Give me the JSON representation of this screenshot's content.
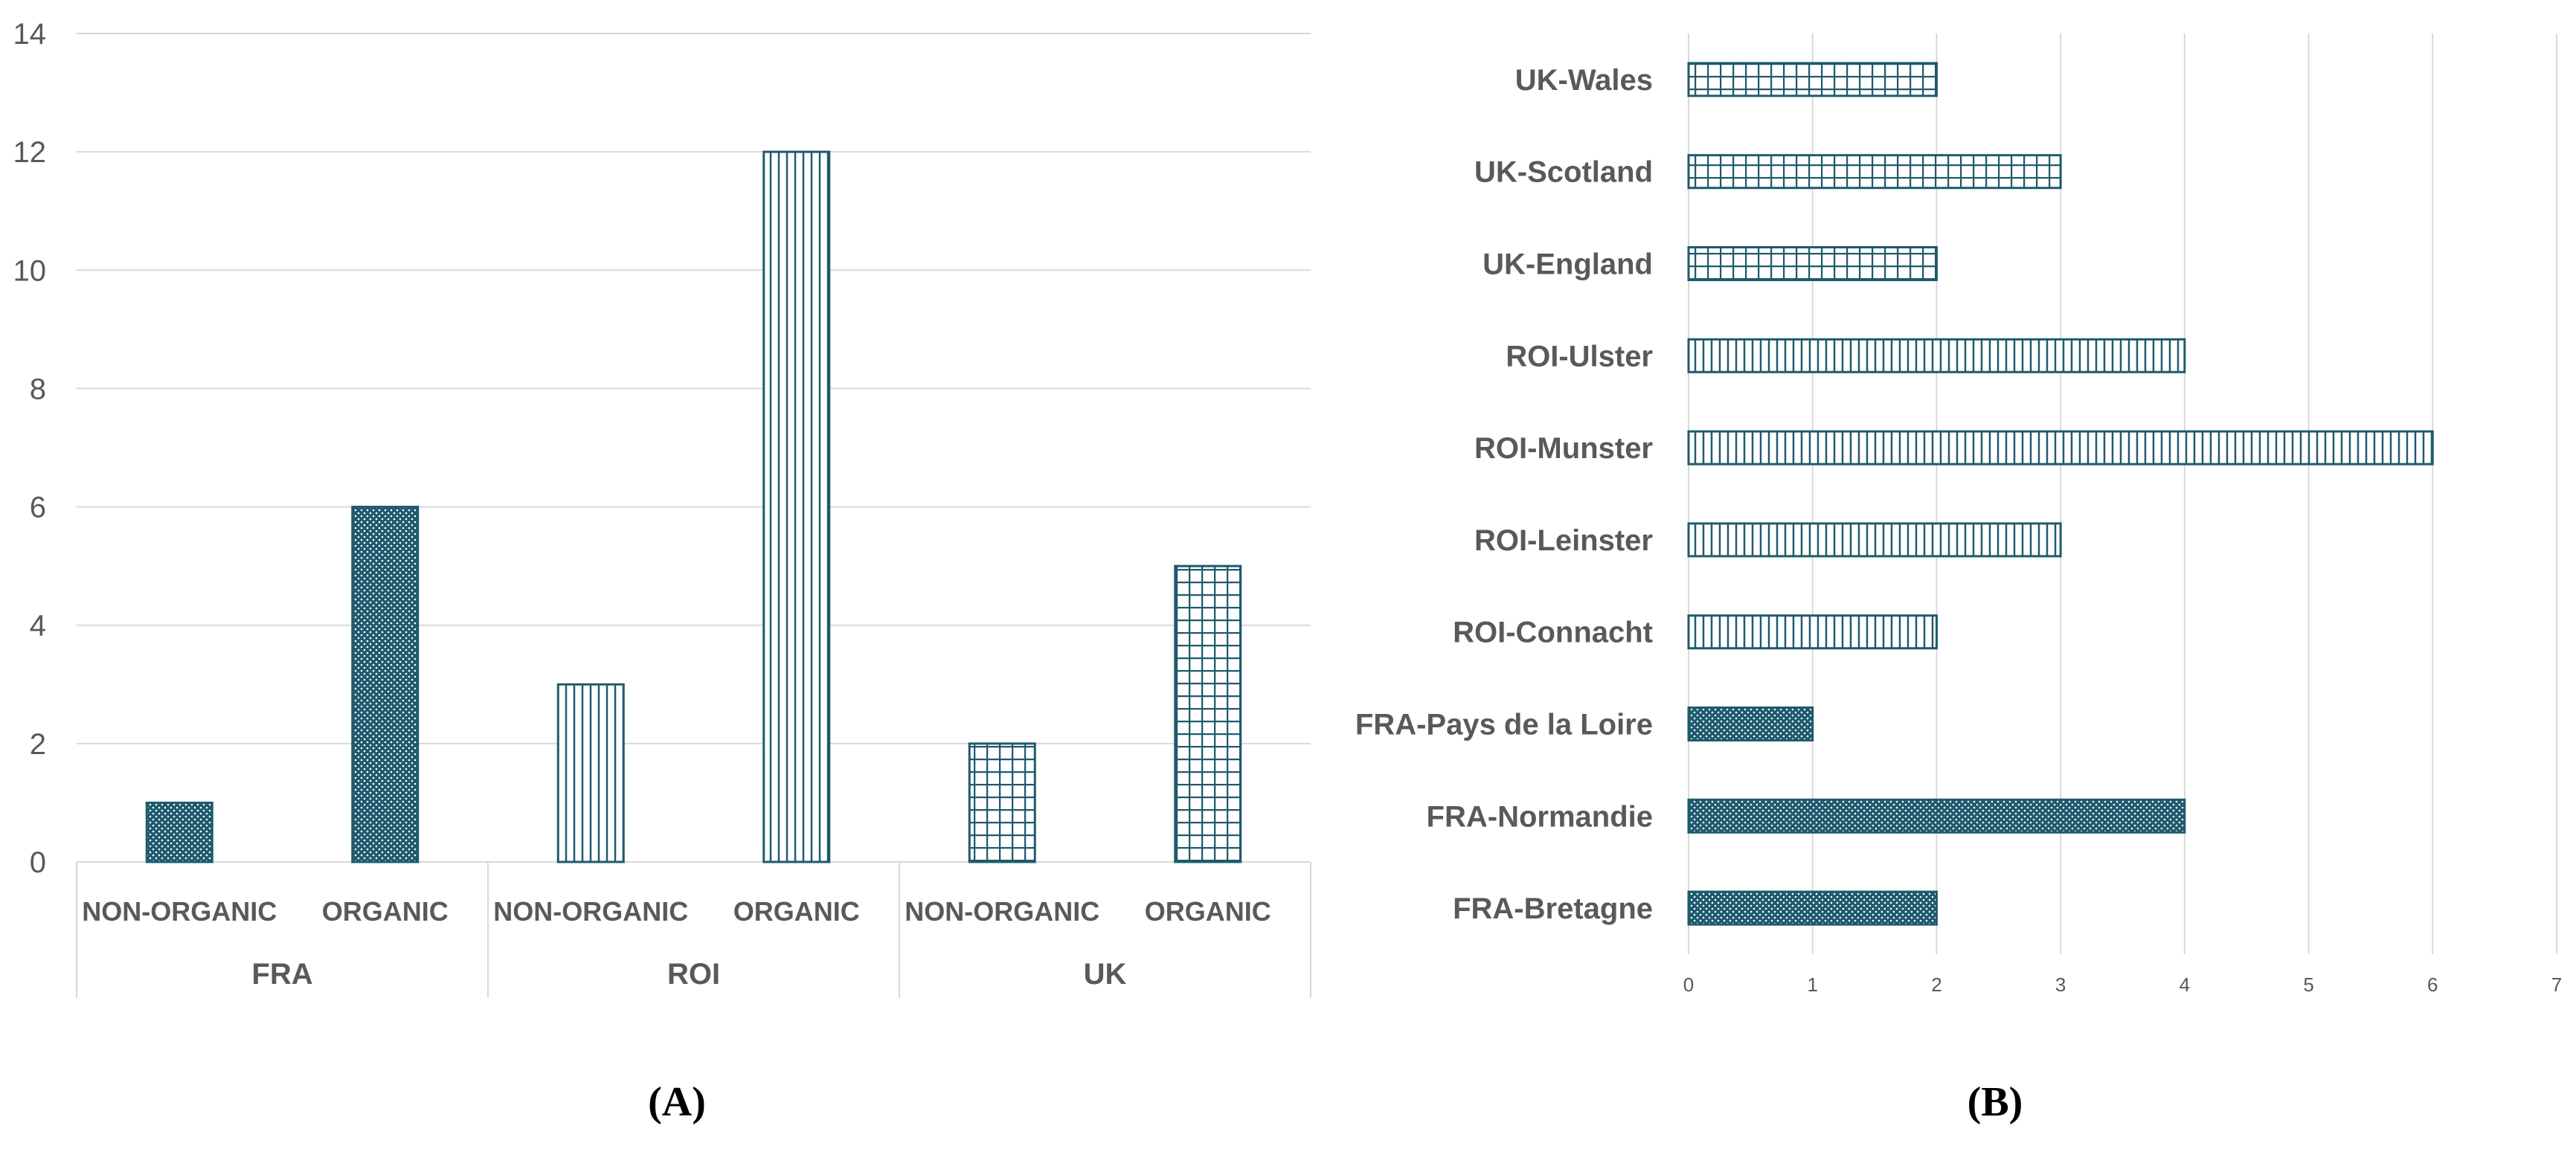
{
  "colors": {
    "bar": "#1f5a6e",
    "grid": "#d9d9d9",
    "text": "#595959"
  },
  "panel_labels": [
    "(A)",
    "(B)"
  ],
  "chart_data": [
    {
      "type": "bar",
      "panel": "(A)",
      "title": "",
      "xlabel": "",
      "ylabel": "",
      "ylim": [
        0,
        14
      ],
      "yticks": [
        0,
        2,
        4,
        6,
        8,
        10,
        12,
        14
      ],
      "grid": true,
      "groups": [
        "FRA",
        "ROI",
        "UK"
      ],
      "categories": [
        "NON-ORGANIC",
        "ORGANIC",
        "NON-ORGANIC",
        "ORGANIC",
        "NON-ORGANIC",
        "ORGANIC"
      ],
      "category_groups": [
        "FRA",
        "FRA",
        "ROI",
        "ROI",
        "UK",
        "UK"
      ],
      "values": [
        1,
        6,
        3,
        12,
        2,
        5
      ],
      "patterns": [
        "dots",
        "dots",
        "vertical-lines",
        "vertical-lines",
        "grid",
        "grid"
      ]
    },
    {
      "type": "bar",
      "orientation": "horizontal",
      "panel": "(B)",
      "title": "",
      "xlabel": "",
      "ylabel": "",
      "xlim": [
        0,
        7
      ],
      "xticks": [
        0,
        1,
        2,
        3,
        4,
        5,
        6,
        7
      ],
      "grid": true,
      "categories": [
        "UK-Wales",
        "UK-Scotland",
        "UK-England",
        "ROI-Ulster",
        "ROI-Munster",
        "ROI-Leinster",
        "ROI-Connacht",
        "FRA-Pays de la Loire",
        "FRA-Normandie",
        "FRA-Bretagne"
      ],
      "values": [
        2,
        3,
        2,
        4,
        6,
        3,
        2,
        1,
        4,
        2
      ],
      "patterns": [
        "grid",
        "grid",
        "grid",
        "vertical-lines",
        "vertical-lines",
        "vertical-lines",
        "vertical-lines",
        "dots",
        "dots",
        "dots"
      ]
    }
  ]
}
